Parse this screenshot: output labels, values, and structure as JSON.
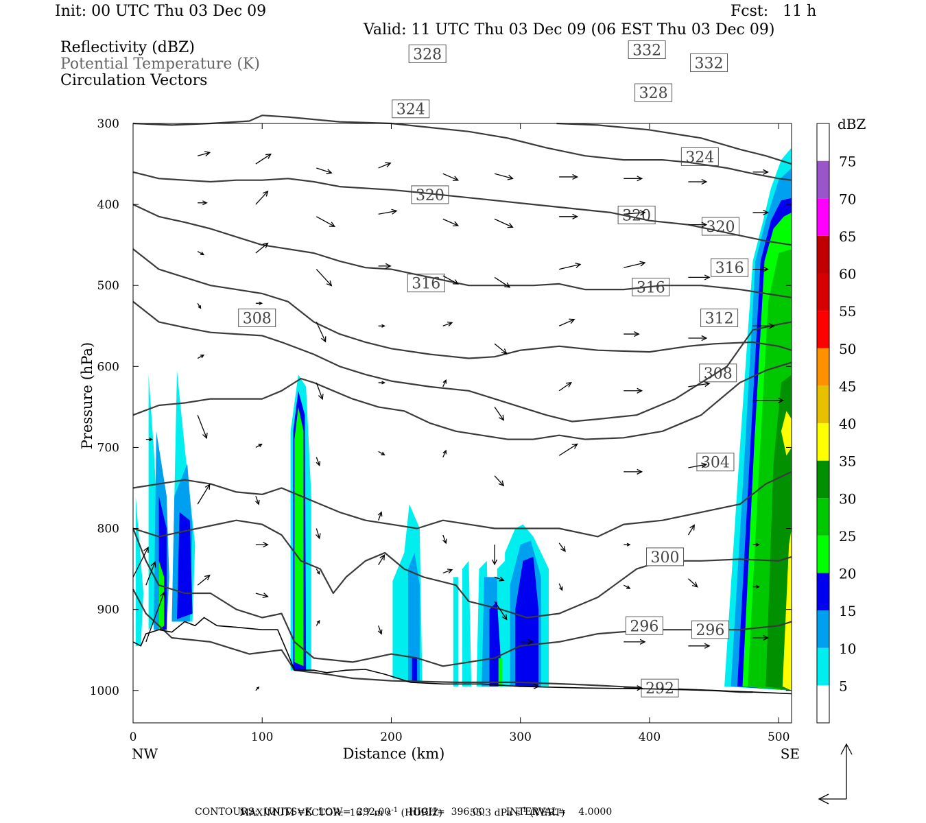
{
  "header": {
    "init": "Init: 00 UTC Thu 03 Dec 09",
    "fcst": "Fcst:   11 h",
    "valid": "Valid: 11 UTC Thu 03 Dec 09 (06 EST Thu 03 Dec 09)",
    "fields": [
      "Reflectivity (dBZ)",
      "Potential Temperature (K)",
      "Circulation Vectors"
    ]
  },
  "footer": {
    "max_vector_label": "MAXIMUM VECTOR:",
    "horiz_value": "16.7 m s",
    "horiz_unit": "(HORIZ)",
    "vert_value": "55.3 dPa s",
    "vert_unit": "(VERT)",
    "exponent": "-1",
    "contours_line": "CONTOURS:  UNITS=K  LOW=  292.00      HIGH=  396.00       INTERVAL=    4.0000"
  },
  "chart_data": {
    "type": "cross-section",
    "xlabel": "Distance (km)",
    "ylabel": "Pressure (hPa)",
    "xlim": [
      0,
      510
    ],
    "ylim": [
      1040,
      300
    ],
    "x_ticks": [
      0,
      100,
      200,
      300,
      400,
      500
    ],
    "y_ticks": [
      300,
      400,
      500,
      600,
      700,
      800,
      900,
      1000
    ],
    "x_end_labels": {
      "left": "NW",
      "right": "SE"
    },
    "colorbar": {
      "unit": "dBZ",
      "levels": [
        5,
        10,
        15,
        20,
        25,
        30,
        35,
        40,
        45,
        50,
        55,
        60,
        65,
        70,
        75
      ],
      "colors": [
        "#ffffff",
        "#00eeee",
        "#00a0f0",
        "#0000f0",
        "#00ff00",
        "#00c800",
        "#009000",
        "#ffff00",
        "#e7c000",
        "#ff9000",
        "#ff0000",
        "#d60000",
        "#c00000",
        "#ff00ff",
        "#9955c9",
        "#ffffff"
      ]
    },
    "theta_contours": [
      {
        "value": 292,
        "points": [
          [
            0,
            875
          ],
          [
            10,
            905
          ],
          [
            30,
            935
          ],
          [
            60,
            940
          ],
          [
            90,
            955
          ],
          [
            115,
            950
          ],
          [
            125,
            975
          ],
          [
            150,
            980
          ],
          [
            170,
            985
          ],
          [
            200,
            988
          ],
          [
            250,
            990
          ],
          [
            300,
            990
          ],
          [
            350,
            993
          ],
          [
            400,
            997
          ],
          [
            450,
            1000
          ],
          [
            470,
            1002
          ],
          [
            480,
            1002
          ]
        ],
        "labels": [
          [
            408,
            997
          ]
        ]
      },
      {
        "value": 296,
        "points": [
          [
            0,
            800
          ],
          [
            10,
            840
          ],
          [
            20,
            870
          ],
          [
            40,
            880
          ],
          [
            60,
            880
          ],
          [
            80,
            900
          ],
          [
            100,
            910
          ],
          [
            115,
            905
          ],
          [
            125,
            940
          ],
          [
            140,
            960
          ],
          [
            170,
            965
          ],
          [
            200,
            955
          ],
          [
            220,
            960
          ],
          [
            240,
            970
          ],
          [
            260,
            965
          ],
          [
            280,
            960
          ],
          [
            300,
            945
          ],
          [
            330,
            940
          ],
          [
            360,
            930
          ],
          [
            400,
            925
          ],
          [
            440,
            925
          ],
          [
            470,
            925
          ],
          [
            500,
            920
          ],
          [
            510,
            915
          ]
        ],
        "labels": [
          [
            396,
            920
          ],
          [
            447,
            925
          ]
        ]
      },
      {
        "value": 300,
        "points": [
          [
            0,
            800
          ],
          [
            20,
            810
          ],
          [
            50,
            800
          ],
          [
            80,
            790
          ],
          [
            100,
            795
          ],
          [
            115,
            808
          ],
          [
            130,
            840
          ],
          [
            145,
            850
          ],
          [
            155,
            880
          ],
          [
            165,
            860
          ],
          [
            180,
            840
          ],
          [
            195,
            830
          ],
          [
            210,
            850
          ],
          [
            225,
            860
          ],
          [
            250,
            870
          ],
          [
            260,
            890
          ],
          [
            285,
            900
          ],
          [
            305,
            910
          ],
          [
            330,
            905
          ],
          [
            360,
            885
          ],
          [
            390,
            850
          ],
          [
            410,
            840
          ],
          [
            440,
            840
          ],
          [
            470,
            838
          ],
          [
            500,
            840
          ],
          [
            510,
            835
          ]
        ],
        "labels": [
          [
            412,
            835
          ]
        ]
      },
      {
        "value": 304,
        "points": [
          [
            0,
            750
          ],
          [
            20,
            745
          ],
          [
            40,
            740
          ],
          [
            60,
            745
          ],
          [
            80,
            755
          ],
          [
            100,
            758
          ],
          [
            115,
            750
          ],
          [
            130,
            760
          ],
          [
            145,
            770
          ],
          [
            160,
            780
          ],
          [
            180,
            790
          ],
          [
            200,
            795
          ],
          [
            220,
            800
          ],
          [
            240,
            790
          ],
          [
            260,
            795
          ],
          [
            280,
            800
          ],
          [
            300,
            800
          ],
          [
            330,
            800
          ],
          [
            360,
            810
          ],
          [
            380,
            795
          ],
          [
            410,
            790
          ],
          [
            440,
            780
          ],
          [
            470,
            770
          ],
          [
            490,
            745
          ],
          [
            510,
            730
          ]
        ],
        "labels": [
          [
            451,
            718
          ]
        ]
      },
      {
        "value": 308,
        "points": [
          [
            0,
            660
          ],
          [
            20,
            648
          ],
          [
            40,
            645
          ],
          [
            60,
            640
          ],
          [
            80,
            640
          ],
          [
            100,
            640
          ],
          [
            115,
            630
          ],
          [
            130,
            615
          ],
          [
            140,
            620
          ],
          [
            155,
            630
          ],
          [
            170,
            640
          ],
          [
            190,
            650
          ],
          [
            210,
            655
          ],
          [
            230,
            670
          ],
          [
            250,
            680
          ],
          [
            270,
            685
          ],
          [
            290,
            690
          ],
          [
            310,
            690
          ],
          [
            330,
            685
          ],
          [
            350,
            690
          ],
          [
            380,
            688
          ],
          [
            410,
            680
          ],
          [
            440,
            660
          ],
          [
            470,
            620
          ],
          [
            490,
            605
          ],
          [
            510,
            595
          ]
        ],
        "labels": [
          [
            96,
            540
          ],
          [
            453,
            608
          ]
        ]
      },
      {
        "value": 312,
        "points": [
          [
            0,
            520
          ],
          [
            20,
            545
          ],
          [
            40,
            552
          ],
          [
            60,
            558
          ],
          [
            80,
            560
          ],
          [
            100,
            562
          ],
          [
            115,
            570
          ],
          [
            140,
            585
          ],
          [
            160,
            600
          ],
          [
            180,
            610
          ],
          [
            200,
            618
          ],
          [
            230,
            625
          ],
          [
            260,
            630
          ],
          [
            280,
            640
          ],
          [
            300,
            650
          ],
          [
            320,
            660
          ],
          [
            340,
            668
          ],
          [
            360,
            665
          ],
          [
            390,
            660
          ],
          [
            420,
            640
          ],
          [
            440,
            620
          ],
          [
            460,
            600
          ],
          [
            480,
            555
          ],
          [
            500,
            548
          ],
          [
            510,
            545
          ]
        ],
        "labels": [
          [
            454,
            540
          ]
        ]
      },
      {
        "value": 316,
        "points": [
          [
            0,
            455
          ],
          [
            20,
            480
          ],
          [
            40,
            490
          ],
          [
            60,
            500
          ],
          [
            80,
            505
          ],
          [
            100,
            510
          ],
          [
            120,
            520
          ],
          [
            140,
            545
          ],
          [
            160,
            560
          ],
          [
            180,
            570
          ],
          [
            200,
            578
          ],
          [
            230,
            585
          ],
          [
            260,
            590
          ],
          [
            280,
            588
          ],
          [
            300,
            580
          ],
          [
            330,
            575
          ],
          [
            360,
            580
          ],
          [
            400,
            582
          ],
          [
            430,
            575
          ],
          [
            450,
            572
          ],
          [
            480,
            570
          ],
          [
            500,
            575
          ],
          [
            510,
            580
          ]
        ],
        "labels": [
          [
            227,
            497
          ],
          [
            401,
            502
          ],
          [
            462,
            478
          ]
        ]
      },
      {
        "value": 320,
        "points": [
          [
            0,
            400
          ],
          [
            20,
            415
          ],
          [
            40,
            422
          ],
          [
            60,
            430
          ],
          [
            80,
            440
          ],
          [
            100,
            450
          ],
          [
            120,
            455
          ],
          [
            140,
            460
          ],
          [
            160,
            470
          ],
          [
            180,
            478
          ],
          [
            200,
            480
          ],
          [
            230,
            490
          ],
          [
            260,
            500
          ],
          [
            290,
            500
          ],
          [
            310,
            500
          ],
          [
            330,
            498
          ],
          [
            350,
            505
          ],
          [
            380,
            505
          ],
          [
            410,
            500
          ],
          [
            440,
            500
          ],
          [
            470,
            505
          ],
          [
            490,
            510
          ],
          [
            510,
            515
          ]
        ],
        "labels": [
          [
            230,
            388
          ],
          [
            390,
            413
          ],
          [
            455,
            427
          ]
        ]
      },
      {
        "value": 324,
        "points": [
          [
            0,
            360
          ],
          [
            20,
            368
          ],
          [
            40,
            370
          ],
          [
            60,
            372
          ],
          [
            80,
            370
          ],
          [
            100,
            370
          ],
          [
            120,
            368
          ],
          [
            140,
            372
          ],
          [
            160,
            378
          ],
          [
            180,
            380
          ],
          [
            200,
            382
          ],
          [
            220,
            385
          ],
          [
            250,
            390
          ],
          [
            280,
            395
          ],
          [
            310,
            400
          ],
          [
            340,
            405
          ],
          [
            370,
            410
          ],
          [
            400,
            420
          ],
          [
            430,
            425
          ],
          [
            460,
            435
          ],
          [
            490,
            445
          ],
          [
            510,
            450
          ]
        ],
        "labels": [
          [
            215,
            282
          ],
          [
            439,
            341
          ]
        ]
      },
      {
        "value": 328,
        "points": [
          [
            0,
            300
          ],
          [
            30,
            302
          ],
          [
            60,
            300
          ],
          [
            90,
            297
          ],
          [
            100,
            290
          ],
          [
            120,
            292
          ],
          [
            160,
            298
          ],
          [
            200,
            300
          ],
          [
            230,
            305
          ],
          [
            260,
            310
          ],
          [
            290,
            318
          ],
          [
            320,
            330
          ],
          [
            350,
            340
          ],
          [
            380,
            345
          ],
          [
            410,
            345
          ],
          [
            430,
            348
          ],
          [
            460,
            355
          ],
          [
            480,
            362
          ],
          [
            500,
            368
          ],
          [
            510,
            370
          ]
        ],
        "labels": [
          [
            228,
            214
          ],
          [
            403,
            262
          ]
        ]
      },
      {
        "value": 332,
        "points": [
          [
            328,
            300
          ],
          [
            360,
            302
          ],
          [
            400,
            308
          ],
          [
            440,
            318
          ],
          [
            470,
            332
          ],
          [
            490,
            340
          ],
          [
            500,
            345
          ],
          [
            510,
            350
          ]
        ],
        "labels": [
          [
            398,
            209
          ],
          [
            446,
            225
          ]
        ]
      }
    ]
  }
}
